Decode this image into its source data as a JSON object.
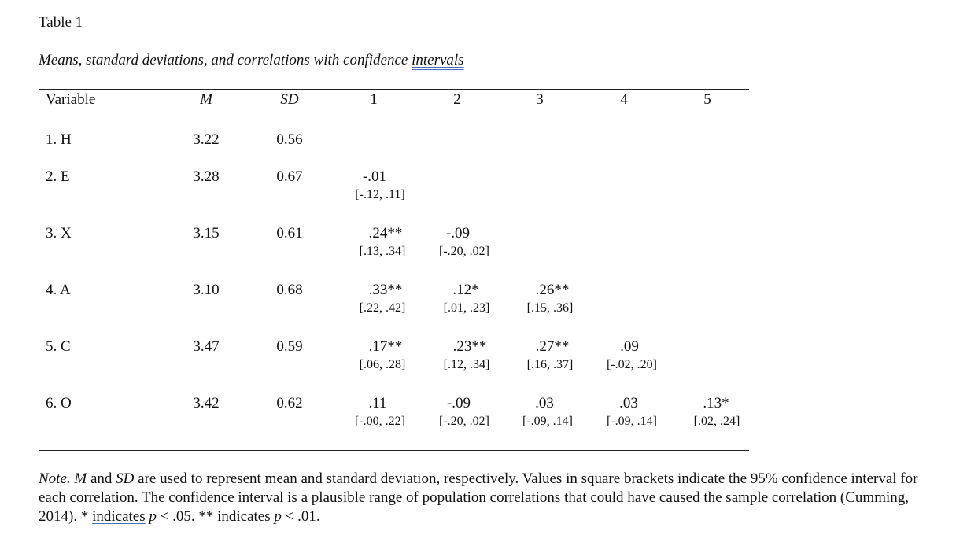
{
  "table_number": "Table 1",
  "title": {
    "main": "Means, standard deviations, and correlations with confidence ",
    "flagged": "intervals"
  },
  "headers": [
    "Variable",
    "M",
    "SD",
    "1",
    "2",
    "3",
    "4",
    "5"
  ],
  "rows": [
    {
      "variable": "1. H",
      "m": "3.22",
      "sd": "0.56",
      "r": [],
      "ci": []
    },
    {
      "variable": "2. E",
      "m": "3.28",
      "sd": "0.67",
      "r": [
        "-.01"
      ],
      "ci": [
        "[-.12, .11]"
      ]
    },
    {
      "variable": "3. X",
      "m": "3.15",
      "sd": "0.61",
      "r": [
        ".24**",
        "-.09"
      ],
      "ci": [
        "[.13, .34]",
        "[-.20, .02]"
      ]
    },
    {
      "variable": "4. A",
      "m": "3.10",
      "sd": "0.68",
      "r": [
        ".33**",
        ".12*",
        ".26**"
      ],
      "ci": [
        "[.22, .42]",
        "[.01, .23]",
        "[.15, .36]"
      ]
    },
    {
      "variable": "5. C",
      "m": "3.47",
      "sd": "0.59",
      "r": [
        ".17**",
        ".23**",
        ".27**",
        ".09"
      ],
      "ci": [
        "[.06, .28]",
        "[.12, .34]",
        "[.16, .37]",
        "[-.02, .20]"
      ]
    },
    {
      "variable": "6. O",
      "m": "3.42",
      "sd": "0.62",
      "r": [
        ".11",
        "-.09",
        ".03",
        ".03",
        ".13*"
      ],
      "ci": [
        "[-.00, .22]",
        "[-.20, .02]",
        "[-.09, .14]",
        "[-.09, .14]",
        "[.02, .24]"
      ]
    }
  ],
  "note": {
    "label": "Note.",
    "m": "M",
    "and": " and ",
    "sd": "SD",
    "text1": " are used to represent mean and standard deviation, respectively. Values in square brackets indicate the 95% confidence interval for each correlation. The confidence interval is a plausible range of population correlations that could have caused the sample correlation (Cumming, 2014). * ",
    "indicates": "indicates",
    "p1": "p",
    "text2": " < .05. ** indicates ",
    "p2": "p",
    "text3": " < .01."
  }
}
